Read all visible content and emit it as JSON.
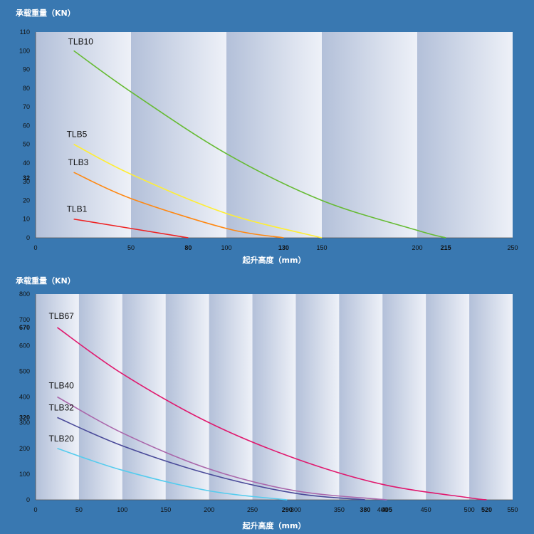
{
  "chart_data": [
    {
      "type": "line",
      "ylabel": "承载重量（KN）",
      "xlabel": "起升高度（mm）",
      "xlim": [
        0,
        250
      ],
      "ylim": [
        0,
        110
      ],
      "x_ticks": [
        0,
        50,
        80,
        100,
        130,
        150,
        200,
        215,
        250
      ],
      "x_ticks_bold": [
        80,
        130,
        215
      ],
      "y_ticks": [
        0,
        10,
        20,
        30,
        32,
        40,
        50,
        60,
        70,
        80,
        90,
        100,
        110
      ],
      "y_ticks_bold": [
        32
      ],
      "series": [
        {
          "name": "TLB10",
          "color": "#66bb33",
          "x": [
            20,
            50,
            100,
            150,
            200,
            215
          ],
          "y": [
            100,
            78,
            45,
            20,
            4,
            0
          ]
        },
        {
          "name": "TLB5",
          "color": "#ffee33",
          "x": [
            20,
            50,
            100,
            150
          ],
          "y": [
            50,
            34,
            13,
            0
          ]
        },
        {
          "name": "TLB3",
          "color": "#ff8811",
          "x": [
            20,
            50,
            100,
            130
          ],
          "y": [
            35,
            21,
            5,
            0
          ]
        },
        {
          "name": "TLB1",
          "color": "#ee2222",
          "x": [
            20,
            50,
            80
          ],
          "y": [
            10,
            5,
            0
          ]
        }
      ]
    },
    {
      "type": "line",
      "ylabel": "承载重量（KN）",
      "xlabel": "起升高度（mm）",
      "xlim": [
        0,
        550
      ],
      "ylim": [
        0,
        800
      ],
      "x_ticks": [
        0,
        50,
        100,
        150,
        200,
        250,
        290,
        300,
        350,
        380,
        400,
        405,
        450,
        500,
        520,
        550
      ],
      "x_ticks_bold": [
        290,
        380,
        405,
        520
      ],
      "y_ticks": [
        0,
        100,
        200,
        300,
        320,
        400,
        500,
        600,
        670,
        700,
        800
      ],
      "y_ticks_bold": [
        320,
        670
      ],
      "series": [
        {
          "name": "TLB67",
          "color": "#e0196e",
          "x": [
            25,
            100,
            200,
            300,
            400,
            500,
            520
          ],
          "y": [
            670,
            490,
            300,
            160,
            60,
            8,
            0
          ]
        },
        {
          "name": "TLB40",
          "color": "#aa66aa",
          "x": [
            25,
            100,
            200,
            300,
            405
          ],
          "y": [
            400,
            260,
            120,
            35,
            0
          ]
        },
        {
          "name": "TLB32",
          "color": "#4a4a99",
          "x": [
            25,
            100,
            200,
            300,
            380
          ],
          "y": [
            320,
            210,
            100,
            25,
            0
          ]
        },
        {
          "name": "TLB20",
          "color": "#55ccee",
          "x": [
            25,
            100,
            200,
            290
          ],
          "y": [
            200,
            115,
            35,
            0
          ]
        }
      ]
    }
  ]
}
